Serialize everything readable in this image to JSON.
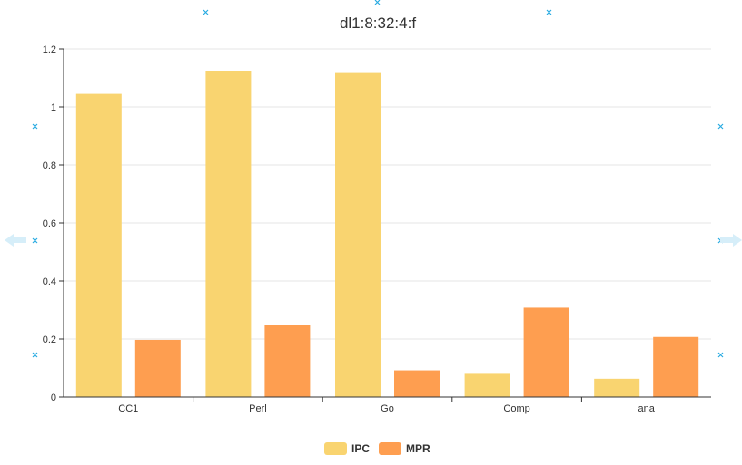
{
  "colors": {
    "IPC": "#f9d470",
    "MPR": "#fe9e50",
    "axis": "#333333",
    "grid": "#e6e6e6",
    "handle": "#29abe2"
  },
  "chart_data": {
    "type": "bar",
    "title": "dl1:8:32:4:f",
    "xlabel": "",
    "ylabel": "",
    "categories": [
      "CC1",
      "Perl",
      "Go",
      "Comp",
      "ana"
    ],
    "series": [
      {
        "name": "IPC",
        "values": [
          1.045,
          1.125,
          1.12,
          0.08,
          0.063
        ]
      },
      {
        "name": "MPR",
        "values": [
          0.197,
          0.248,
          0.092,
          0.308,
          0.207
        ]
      }
    ],
    "ylim": [
      0,
      1.2
    ],
    "yticks": [
      0,
      0.2,
      0.4,
      0.6,
      0.8,
      1,
      1.2
    ],
    "ytick_labels": [
      "0",
      "0.2",
      "0.4",
      "0.6",
      "0.8",
      "1",
      "1.2"
    ],
    "grid": true,
    "legend_position": "bottom"
  }
}
